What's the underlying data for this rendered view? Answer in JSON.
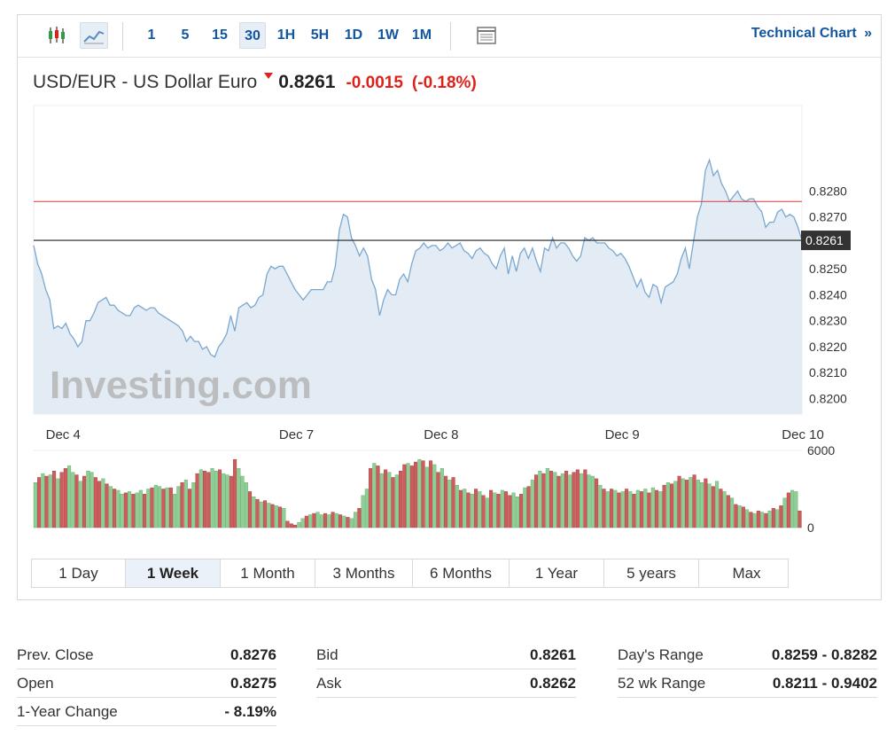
{
  "toolbar": {
    "timeframes": [
      "1",
      "5",
      "15",
      "30",
      "1H",
      "5H",
      "1D",
      "1W",
      "1M"
    ],
    "active_timeframe": "30",
    "technical_chart_label": "Technical Chart",
    "technical_chart_arrows": "»"
  },
  "quote": {
    "name": "USD/EUR - US Dollar Euro",
    "price": "0.8261",
    "change": "-0.0015",
    "change_pct": "(-0.18%)",
    "down_color": "#e0201b"
  },
  "chart_data": {
    "type": "line",
    "watermark": "Investing.com",
    "y_ticks": [
      "0.8280",
      "0.8270",
      "0.8250",
      "0.8240",
      "0.8230",
      "0.8220",
      "0.8210",
      "0.8200"
    ],
    "ylim": [
      0.8194,
      0.8313
    ],
    "x_labels": [
      {
        "label": "Dec 4",
        "index": 3
      },
      {
        "label": "Dec 7",
        "index": 61
      },
      {
        "label": "Dec 8",
        "index": 97
      },
      {
        "label": "Dec 9",
        "index": 142
      },
      {
        "label": "Dec 10",
        "index": 186
      }
    ],
    "prev_close": 0.8276,
    "last_price": 0.8261,
    "last_price_label": "0.8261",
    "series": [
      {
        "name": "",
        "values": [
          0.8259,
          0.8252,
          0.8248,
          0.8242,
          0.8238,
          0.8227,
          0.8228,
          0.8227,
          0.8229,
          0.8225,
          0.8223,
          0.822,
          0.8222,
          0.823,
          0.823,
          0.8233,
          0.8237,
          0.8238,
          0.8239,
          0.8236,
          0.8236,
          0.8234,
          0.8233,
          0.8232,
          0.8232,
          0.8235,
          0.8236,
          0.8235,
          0.8234,
          0.8235,
          0.8235,
          0.8233,
          0.8232,
          0.8231,
          0.823,
          0.8229,
          0.8228,
          0.8226,
          0.8222,
          0.8224,
          0.8222,
          0.8222,
          0.8219,
          0.822,
          0.8217,
          0.8216,
          0.822,
          0.8222,
          0.8225,
          0.8232,
          0.8226,
          0.8235,
          0.8236,
          0.8237,
          0.8235,
          0.8236,
          0.8239,
          0.824,
          0.8248,
          0.8251,
          0.825,
          0.8251,
          0.8251,
          0.8248,
          0.8245,
          0.8242,
          0.824,
          0.8238,
          0.824,
          0.8242,
          0.8242,
          0.8242,
          0.8242,
          0.8245,
          0.8245,
          0.8251,
          0.8265,
          0.8271,
          0.827,
          0.8262,
          0.8259,
          0.8255,
          0.8258,
          0.8255,
          0.8246,
          0.8242,
          0.8232,
          0.8238,
          0.8242,
          0.824,
          0.824,
          0.8246,
          0.8248,
          0.8245,
          0.8252,
          0.8257,
          0.8258,
          0.826,
          0.8258,
          0.8259,
          0.8259,
          0.8257,
          0.8258,
          0.826,
          0.8258,
          0.8259,
          0.826,
          0.8257,
          0.8256,
          0.8254,
          0.8257,
          0.8258,
          0.8256,
          0.8255,
          0.8252,
          0.825,
          0.8255,
          0.8258,
          0.8248,
          0.8255,
          0.8249,
          0.8256,
          0.8258,
          0.8254,
          0.8258,
          0.8253,
          0.8249,
          0.8258,
          0.8257,
          0.8262,
          0.8258,
          0.826,
          0.826,
          0.8258,
          0.8255,
          0.8253,
          0.8255,
          0.8262,
          0.8261,
          0.8262,
          0.826,
          0.826,
          0.826,
          0.8258,
          0.8257,
          0.8255,
          0.8256,
          0.8254,
          0.8251,
          0.8247,
          0.8243,
          0.8246,
          0.8241,
          0.8239,
          0.8244,
          0.8243,
          0.8237,
          0.8243,
          0.8244,
          0.8245,
          0.8248,
          0.8254,
          0.8258,
          0.825,
          0.826,
          0.827,
          0.8275,
          0.8288,
          0.8292,
          0.8286,
          0.8288,
          0.8283,
          0.828,
          0.8276,
          0.8278,
          0.828,
          0.8277,
          0.8276,
          0.8277,
          0.8277,
          0.8274,
          0.8272,
          0.8266,
          0.8268,
          0.8268,
          0.8272,
          0.8273,
          0.827,
          0.8271,
          0.827,
          0.8266,
          0.8261
        ]
      }
    ],
    "volume_ticks": [
      "6000",
      "0"
    ],
    "volume_max": 6000,
    "volume": [
      {
        "v": 3500,
        "dir": "up"
      },
      {
        "v": 3900,
        "dir": "down"
      },
      {
        "v": 4200,
        "dir": "up"
      },
      {
        "v": 4000,
        "dir": "down"
      },
      {
        "v": 4100,
        "dir": "up"
      },
      {
        "v": 4400,
        "dir": "down"
      },
      {
        "v": 3800,
        "dir": "up"
      },
      {
        "v": 4300,
        "dir": "down"
      },
      {
        "v": 4600,
        "dir": "down"
      },
      {
        "v": 4800,
        "dir": "up"
      },
      {
        "v": 4300,
        "dir": "up"
      },
      {
        "v": 4100,
        "dir": "down"
      },
      {
        "v": 3600,
        "dir": "up"
      },
      {
        "v": 4000,
        "dir": "down"
      },
      {
        "v": 4400,
        "dir": "up"
      },
      {
        "v": 4300,
        "dir": "up"
      },
      {
        "v": 3900,
        "dir": "down"
      },
      {
        "v": 3600,
        "dir": "down"
      },
      {
        "v": 3800,
        "dir": "up"
      },
      {
        "v": 3400,
        "dir": "down"
      },
      {
        "v": 3200,
        "dir": "up"
      },
      {
        "v": 3000,
        "dir": "down"
      },
      {
        "v": 2900,
        "dir": "up"
      },
      {
        "v": 2600,
        "dir": "up"
      },
      {
        "v": 2700,
        "dir": "down"
      },
      {
        "v": 2800,
        "dir": "up"
      },
      {
        "v": 2600,
        "dir": "down"
      },
      {
        "v": 2700,
        "dir": "up"
      },
      {
        "v": 2900,
        "dir": "up"
      },
      {
        "v": 2600,
        "dir": "down"
      },
      {
        "v": 3000,
        "dir": "up"
      },
      {
        "v": 3100,
        "dir": "down"
      },
      {
        "v": 3300,
        "dir": "up"
      },
      {
        "v": 3200,
        "dir": "up"
      },
      {
        "v": 3000,
        "dir": "down"
      },
      {
        "v": 3100,
        "dir": "up"
      },
      {
        "v": 3100,
        "dir": "down"
      },
      {
        "v": 2600,
        "dir": "up"
      },
      {
        "v": 3200,
        "dir": "up"
      },
      {
        "v": 3500,
        "dir": "down"
      },
      {
        "v": 3700,
        "dir": "up"
      },
      {
        "v": 3000,
        "dir": "down"
      },
      {
        "v": 3500,
        "dir": "up"
      },
      {
        "v": 4200,
        "dir": "down"
      },
      {
        "v": 4500,
        "dir": "up"
      },
      {
        "v": 4400,
        "dir": "down"
      },
      {
        "v": 4300,
        "dir": "down"
      },
      {
        "v": 4600,
        "dir": "up"
      },
      {
        "v": 4400,
        "dir": "up"
      },
      {
        "v": 4500,
        "dir": "down"
      },
      {
        "v": 4200,
        "dir": "up"
      },
      {
        "v": 4100,
        "dir": "up"
      },
      {
        "v": 4000,
        "dir": "down"
      },
      {
        "v": 5300,
        "dir": "down"
      },
      {
        "v": 4600,
        "dir": "up"
      },
      {
        "v": 4000,
        "dir": "up"
      },
      {
        "v": 3500,
        "dir": "up"
      },
      {
        "v": 2800,
        "dir": "down"
      },
      {
        "v": 2400,
        "dir": "up"
      },
      {
        "v": 2200,
        "dir": "down"
      },
      {
        "v": 2000,
        "dir": "up"
      },
      {
        "v": 2100,
        "dir": "down"
      },
      {
        "v": 1900,
        "dir": "up"
      },
      {
        "v": 1800,
        "dir": "down"
      },
      {
        "v": 1700,
        "dir": "up"
      },
      {
        "v": 1600,
        "dir": "down"
      },
      {
        "v": 1500,
        "dir": "up"
      },
      {
        "v": 500,
        "dir": "down"
      },
      {
        "v": 300,
        "dir": "down"
      },
      {
        "v": 200,
        "dir": "down"
      },
      {
        "v": 400,
        "dir": "up"
      },
      {
        "v": 700,
        "dir": "up"
      },
      {
        "v": 900,
        "dir": "down"
      },
      {
        "v": 1000,
        "dir": "up"
      },
      {
        "v": 1100,
        "dir": "down"
      },
      {
        "v": 1200,
        "dir": "up"
      },
      {
        "v": 1000,
        "dir": "up"
      },
      {
        "v": 1100,
        "dir": "down"
      },
      {
        "v": 1000,
        "dir": "up"
      },
      {
        "v": 1200,
        "dir": "down"
      },
      {
        "v": 1100,
        "dir": "up"
      },
      {
        "v": 1000,
        "dir": "down"
      },
      {
        "v": 900,
        "dir": "up"
      },
      {
        "v": 800,
        "dir": "down"
      },
      {
        "v": 700,
        "dir": "up"
      },
      {
        "v": 1200,
        "dir": "up"
      },
      {
        "v": 1500,
        "dir": "down"
      },
      {
        "v": 2500,
        "dir": "up"
      },
      {
        "v": 3000,
        "dir": "up"
      },
      {
        "v": 4600,
        "dir": "down"
      },
      {
        "v": 5000,
        "dir": "up"
      },
      {
        "v": 4800,
        "dir": "down"
      },
      {
        "v": 4200,
        "dir": "up"
      },
      {
        "v": 4500,
        "dir": "down"
      },
      {
        "v": 4300,
        "dir": "up"
      },
      {
        "v": 3900,
        "dir": "down"
      },
      {
        "v": 4100,
        "dir": "up"
      },
      {
        "v": 4400,
        "dir": "down"
      },
      {
        "v": 4900,
        "dir": "down"
      },
      {
        "v": 5000,
        "dir": "up"
      },
      {
        "v": 4800,
        "dir": "down"
      },
      {
        "v": 5100,
        "dir": "down"
      },
      {
        "v": 5300,
        "dir": "up"
      },
      {
        "v": 5200,
        "dir": "down"
      },
      {
        "v": 4700,
        "dir": "up"
      },
      {
        "v": 5200,
        "dir": "down"
      },
      {
        "v": 4900,
        "dir": "up"
      },
      {
        "v": 4300,
        "dir": "down"
      },
      {
        "v": 4600,
        "dir": "up"
      },
      {
        "v": 4000,
        "dir": "down"
      },
      {
        "v": 3700,
        "dir": "up"
      },
      {
        "v": 3900,
        "dir": "down"
      },
      {
        "v": 3300,
        "dir": "up"
      },
      {
        "v": 2900,
        "dir": "down"
      },
      {
        "v": 3000,
        "dir": "up"
      },
      {
        "v": 2700,
        "dir": "down"
      },
      {
        "v": 2600,
        "dir": "up"
      },
      {
        "v": 3000,
        "dir": "down"
      },
      {
        "v": 2800,
        "dir": "up"
      },
      {
        "v": 2500,
        "dir": "down"
      },
      {
        "v": 2300,
        "dir": "up"
      },
      {
        "v": 2900,
        "dir": "down"
      },
      {
        "v": 2700,
        "dir": "up"
      },
      {
        "v": 2600,
        "dir": "down"
      },
      {
        "v": 2900,
        "dir": "up"
      },
      {
        "v": 2800,
        "dir": "down"
      },
      {
        "v": 2500,
        "dir": "down"
      },
      {
        "v": 2700,
        "dir": "up"
      },
      {
        "v": 2400,
        "dir": "up"
      },
      {
        "v": 2600,
        "dir": "down"
      },
      {
        "v": 3100,
        "dir": "up"
      },
      {
        "v": 3200,
        "dir": "down"
      },
      {
        "v": 3700,
        "dir": "up"
      },
      {
        "v": 4100,
        "dir": "down"
      },
      {
        "v": 4400,
        "dir": "up"
      },
      {
        "v": 4200,
        "dir": "down"
      },
      {
        "v": 4600,
        "dir": "up"
      },
      {
        "v": 4400,
        "dir": "down"
      },
      {
        "v": 4300,
        "dir": "up"
      },
      {
        "v": 4000,
        "dir": "down"
      },
      {
        "v": 4200,
        "dir": "up"
      },
      {
        "v": 4400,
        "dir": "down"
      },
      {
        "v": 4100,
        "dir": "up"
      },
      {
        "v": 4300,
        "dir": "down"
      },
      {
        "v": 4500,
        "dir": "down"
      },
      {
        "v": 4200,
        "dir": "up"
      },
      {
        "v": 4500,
        "dir": "down"
      },
      {
        "v": 4100,
        "dir": "up"
      },
      {
        "v": 4000,
        "dir": "up"
      },
      {
        "v": 3800,
        "dir": "down"
      },
      {
        "v": 3300,
        "dir": "up"
      },
      {
        "v": 3000,
        "dir": "down"
      },
      {
        "v": 2800,
        "dir": "up"
      },
      {
        "v": 3000,
        "dir": "down"
      },
      {
        "v": 2900,
        "dir": "up"
      },
      {
        "v": 2700,
        "dir": "down"
      },
      {
        "v": 2800,
        "dir": "up"
      },
      {
        "v": 3000,
        "dir": "down"
      },
      {
        "v": 2800,
        "dir": "up"
      },
      {
        "v": 2600,
        "dir": "down"
      },
      {
        "v": 2900,
        "dir": "up"
      },
      {
        "v": 2800,
        "dir": "down"
      },
      {
        "v": 3000,
        "dir": "up"
      },
      {
        "v": 2700,
        "dir": "down"
      },
      {
        "v": 3100,
        "dir": "up"
      },
      {
        "v": 2900,
        "dir": "down"
      },
      {
        "v": 2800,
        "dir": "up"
      },
      {
        "v": 3300,
        "dir": "down"
      },
      {
        "v": 3500,
        "dir": "up"
      },
      {
        "v": 3400,
        "dir": "down"
      },
      {
        "v": 3600,
        "dir": "up"
      },
      {
        "v": 4000,
        "dir": "down"
      },
      {
        "v": 3800,
        "dir": "up"
      },
      {
        "v": 3700,
        "dir": "down"
      },
      {
        "v": 3900,
        "dir": "up"
      },
      {
        "v": 4100,
        "dir": "down"
      },
      {
        "v": 3700,
        "dir": "up"
      },
      {
        "v": 3500,
        "dir": "up"
      },
      {
        "v": 3800,
        "dir": "down"
      },
      {
        "v": 3400,
        "dir": "up"
      },
      {
        "v": 3200,
        "dir": "down"
      },
      {
        "v": 3600,
        "dir": "up"
      },
      {
        "v": 3000,
        "dir": "down"
      },
      {
        "v": 2800,
        "dir": "up"
      },
      {
        "v": 2500,
        "dir": "down"
      },
      {
        "v": 2300,
        "dir": "up"
      },
      {
        "v": 1800,
        "dir": "down"
      },
      {
        "v": 1700,
        "dir": "up"
      },
      {
        "v": 1600,
        "dir": "down"
      },
      {
        "v": 1400,
        "dir": "up"
      },
      {
        "v": 1200,
        "dir": "down"
      },
      {
        "v": 1100,
        "dir": "up"
      },
      {
        "v": 1300,
        "dir": "down"
      },
      {
        "v": 1200,
        "dir": "up"
      },
      {
        "v": 1100,
        "dir": "down"
      },
      {
        "v": 1300,
        "dir": "up"
      },
      {
        "v": 1500,
        "dir": "down"
      },
      {
        "v": 1400,
        "dir": "up"
      },
      {
        "v": 1700,
        "dir": "down"
      },
      {
        "v": 2300,
        "dir": "up"
      },
      {
        "v": 2700,
        "dir": "down"
      },
      {
        "v": 2900,
        "dir": "up"
      },
      {
        "v": 2800,
        "dir": "up"
      },
      {
        "v": 1300,
        "dir": "down"
      }
    ],
    "colors": {
      "line": "#7aa7d0",
      "area": "#e3ecf4",
      "prev_close_line": "#d9373a",
      "last_price_line": "#222222",
      "volume_up": "#8fcf96",
      "volume_down": "#cd5c5c",
      "price_label_bg": "#333333"
    }
  },
  "range_tabs": [
    "1 Day",
    "1 Week",
    "1 Month",
    "3 Months",
    "6 Months",
    "1 Year",
    "5 years",
    "Max"
  ],
  "active_range": "1 Week",
  "stats": {
    "col1": [
      {
        "label": "Prev. Close",
        "value": "0.8276"
      },
      {
        "label": "Open",
        "value": "0.8275"
      },
      {
        "label": "1-Year Change",
        "value": "- 8.19%"
      }
    ],
    "col2": [
      {
        "label": "Bid",
        "value": "0.8261"
      },
      {
        "label": "Ask",
        "value": "0.8262"
      }
    ],
    "col3": [
      {
        "label": "Day's Range",
        "value": "0.8259 - 0.8282"
      },
      {
        "label": "52 wk Range",
        "value": "0.8211 - 0.9402"
      }
    ]
  }
}
